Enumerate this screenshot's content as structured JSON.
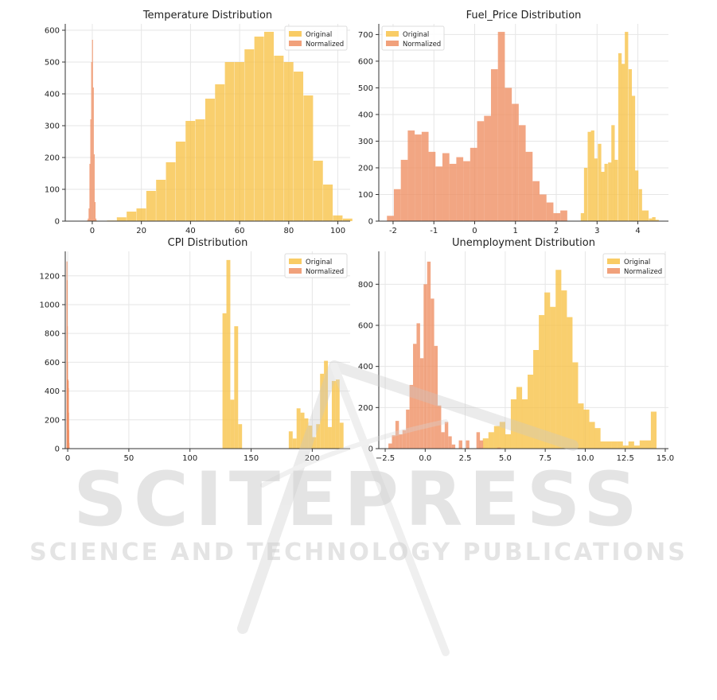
{
  "colors": {
    "original": "#f8c34a",
    "normalized": "#ef9064",
    "grid": "#e6e6e6",
    "axis": "#333333"
  },
  "watermark": {
    "title": "SCITEPRESS",
    "subtitle": "SCIENCE AND TECHNOLOGY PUBLICATIONS"
  },
  "chart_data": [
    {
      "type": "bar",
      "title": "Temperature Distribution",
      "xlabel": "",
      "ylabel": "",
      "xlim": [
        -11,
        105
      ],
      "ylim": [
        0,
        620
      ],
      "xticks": [
        0,
        20,
        40,
        60,
        80,
        100
      ],
      "yticks": [
        0,
        100,
        200,
        300,
        400,
        500,
        600
      ],
      "legend": "top-right",
      "series": [
        {
          "name": "Original",
          "color": "#f8c34a",
          "bin_width": 3.9,
          "bins": [
            [
              -2,
              2
            ],
            [
              2,
              1
            ],
            [
              6,
              2
            ],
            [
              10,
              12
            ],
            [
              14,
              30
            ],
            [
              18,
              40
            ],
            [
              22,
              95
            ],
            [
              26,
              130
            ],
            [
              30,
              185
            ],
            [
              34,
              250
            ],
            [
              38,
              315
            ],
            [
              42,
              320
            ],
            [
              46,
              385
            ],
            [
              50,
              430
            ],
            [
              54,
              500
            ],
            [
              58,
              500
            ],
            [
              62,
              540
            ],
            [
              66,
              580
            ],
            [
              70,
              595
            ],
            [
              74,
              520
            ],
            [
              78,
              500
            ],
            [
              82,
              470
            ],
            [
              86,
              395
            ],
            [
              90,
              190
            ],
            [
              94,
              115
            ],
            [
              98,
              18
            ],
            [
              102,
              8
            ]
          ]
        },
        {
          "name": "Normalized",
          "color": "#ef9064",
          "bin_width": 0.35,
          "bins": [
            [
              -2.2,
              2
            ],
            [
              -1.85,
              8
            ],
            [
              -1.5,
              40
            ],
            [
              -1.15,
              180
            ],
            [
              -0.8,
              320
            ],
            [
              -0.45,
              500
            ],
            [
              -0.1,
              570
            ],
            [
              0.25,
              420
            ],
            [
              0.6,
              210
            ],
            [
              0.95,
              60
            ],
            [
              1.3,
              8
            ]
          ]
        }
      ]
    },
    {
      "type": "bar",
      "title": "Fuel_Price Distribution",
      "xlabel": "",
      "ylabel": "",
      "xlim": [
        -2.35,
        4.75
      ],
      "ylim": [
        0,
        740
      ],
      "xticks": [
        -2,
        -1,
        0,
        1,
        2,
        3,
        4
      ],
      "yticks": [
        0,
        100,
        200,
        300,
        400,
        500,
        600,
        700
      ],
      "legend": "top-left",
      "series": [
        {
          "name": "Original",
          "color": "#f8c34a",
          "bin_width": 0.0835,
          "bins": [
            [
              2.6,
              30
            ],
            [
              2.68,
              200
            ],
            [
              2.77,
              335
            ],
            [
              2.85,
              340
            ],
            [
              2.93,
              235
            ],
            [
              3.02,
              290
            ],
            [
              3.1,
              185
            ],
            [
              3.18,
              215
            ],
            [
              3.27,
              220
            ],
            [
              3.35,
              360
            ],
            [
              3.43,
              230
            ],
            [
              3.52,
              630
            ],
            [
              3.6,
              590
            ],
            [
              3.68,
              710
            ],
            [
              3.77,
              570
            ],
            [
              3.85,
              470
            ],
            [
              3.93,
              190
            ],
            [
              4.02,
              120
            ],
            [
              4.1,
              40
            ],
            [
              4.18,
              40
            ],
            [
              4.27,
              10
            ],
            [
              4.35,
              15
            ],
            [
              4.43,
              5
            ]
          ]
        },
        {
          "name": "Normalized",
          "color": "#ef9064",
          "bin_width": 0.17,
          "bins": [
            [
              -2.15,
              20
            ],
            [
              -1.98,
              120
            ],
            [
              -1.81,
              230
            ],
            [
              -1.64,
              340
            ],
            [
              -1.47,
              325
            ],
            [
              -1.3,
              335
            ],
            [
              -1.13,
              260
            ],
            [
              -0.96,
              205
            ],
            [
              -0.79,
              255
            ],
            [
              -0.62,
              215
            ],
            [
              -0.45,
              240
            ],
            [
              -0.28,
              225
            ],
            [
              -0.11,
              275
            ],
            [
              0.06,
              375
            ],
            [
              0.23,
              395
            ],
            [
              0.4,
              570
            ],
            [
              0.57,
              710
            ],
            [
              0.74,
              500
            ],
            [
              0.91,
              440
            ],
            [
              1.08,
              360
            ],
            [
              1.25,
              260
            ],
            [
              1.42,
              150
            ],
            [
              1.59,
              100
            ],
            [
              1.76,
              70
            ],
            [
              1.93,
              30
            ],
            [
              2.1,
              40
            ]
          ]
        }
      ]
    },
    {
      "type": "bar",
      "title": "CPI Distribution",
      "xlabel": "",
      "ylabel": "",
      "xlim": [
        -2,
        231
      ],
      "ylim": [
        0,
        1370
      ],
      "xticks": [
        0,
        50,
        100,
        150,
        200
      ],
      "yticks": [
        0,
        200,
        400,
        600,
        800,
        1000,
        1200
      ],
      "legend": "top-right",
      "series": [
        {
          "name": "Original",
          "color": "#f8c34a",
          "bin_width": 3.2,
          "bins": [
            [
              126.6,
              940
            ],
            [
              129.8,
              1310
            ],
            [
              133,
              340
            ],
            [
              136.2,
              850
            ],
            [
              139.4,
              170
            ],
            [
              180.8,
              120
            ],
            [
              184,
              70
            ],
            [
              187.2,
              280
            ],
            [
              190.4,
              250
            ],
            [
              193.6,
              210
            ],
            [
              196.8,
              160
            ],
            [
              200,
              80
            ],
            [
              203.2,
              170
            ],
            [
              206.4,
              520
            ],
            [
              209.6,
              610
            ],
            [
              212.8,
              150
            ],
            [
              216,
              470
            ],
            [
              219.2,
              480
            ],
            [
              222.4,
              180
            ]
          ]
        },
        {
          "name": "Normalized",
          "color": "#ef9064",
          "bin_width": 0.15,
          "bins": [
            [
              -1.0,
              1300
            ],
            [
              -0.85,
              1170
            ],
            [
              -0.7,
              850
            ],
            [
              -0.55,
              600
            ],
            [
              -0.4,
              420
            ],
            [
              -0.25,
              300
            ],
            [
              -0.1,
              480
            ],
            [
              0.05,
              470
            ],
            [
              0.2,
              420
            ],
            [
              0.35,
              250
            ],
            [
              0.5,
              130
            ],
            [
              0.65,
              40
            ],
            [
              0.8,
              10
            ]
          ]
        }
      ]
    },
    {
      "type": "bar",
      "title": "Unemployment Distribution",
      "xlabel": "",
      "ylabel": "",
      "xlim": [
        -2.9,
        15.2
      ],
      "ylim": [
        0,
        960
      ],
      "xticks": [
        -2.5,
        0.0,
        2.5,
        5.0,
        7.5,
        10.0,
        12.5,
        15.0
      ],
      "yticks": [
        0,
        200,
        400,
        600,
        800
      ],
      "legend": "top-right",
      "series": [
        {
          "name": "Original",
          "color": "#f8c34a",
          "bin_width": 0.355,
          "bins": [
            [
              3.6,
              50
            ],
            [
              3.95,
              80
            ],
            [
              4.3,
              110
            ],
            [
              4.65,
              130
            ],
            [
              5.0,
              70
            ],
            [
              5.35,
              240
            ],
            [
              5.7,
              300
            ],
            [
              6.05,
              240
            ],
            [
              6.4,
              360
            ],
            [
              6.75,
              480
            ],
            [
              7.1,
              650
            ],
            [
              7.45,
              760
            ],
            [
              7.8,
              690
            ],
            [
              8.15,
              870
            ],
            [
              8.5,
              770
            ],
            [
              8.85,
              640
            ],
            [
              9.2,
              420
            ],
            [
              9.55,
              220
            ],
            [
              9.9,
              190
            ],
            [
              10.25,
              130
            ],
            [
              10.6,
              100
            ],
            [
              10.95,
              35
            ],
            [
              11.3,
              35
            ],
            [
              11.65,
              35
            ],
            [
              12.0,
              35
            ],
            [
              12.35,
              15
            ],
            [
              12.7,
              35
            ],
            [
              13.05,
              15
            ],
            [
              13.4,
              40
            ],
            [
              13.75,
              40
            ],
            [
              14.1,
              180
            ]
          ]
        },
        {
          "name": "Normalized",
          "color": "#ef9064",
          "bin_width": 0.22,
          "bins": [
            [
              -2.3,
              25
            ],
            [
              -2.08,
              65
            ],
            [
              -1.86,
              135
            ],
            [
              -1.64,
              70
            ],
            [
              -1.42,
              90
            ],
            [
              -1.2,
              190
            ],
            [
              -0.98,
              310
            ],
            [
              -0.76,
              510
            ],
            [
              -0.54,
              610
            ],
            [
              -0.32,
              440
            ],
            [
              -0.1,
              800
            ],
            [
              0.12,
              910
            ],
            [
              0.34,
              730
            ],
            [
              0.56,
              500
            ],
            [
              0.78,
              210
            ],
            [
              1.0,
              80
            ],
            [
              1.22,
              130
            ],
            [
              1.44,
              60
            ],
            [
              1.66,
              20
            ],
            [
              2.1,
              40
            ],
            [
              2.54,
              40
            ],
            [
              3.2,
              80
            ],
            [
              3.4,
              40
            ],
            [
              4.5,
              5
            ]
          ]
        }
      ]
    }
  ]
}
